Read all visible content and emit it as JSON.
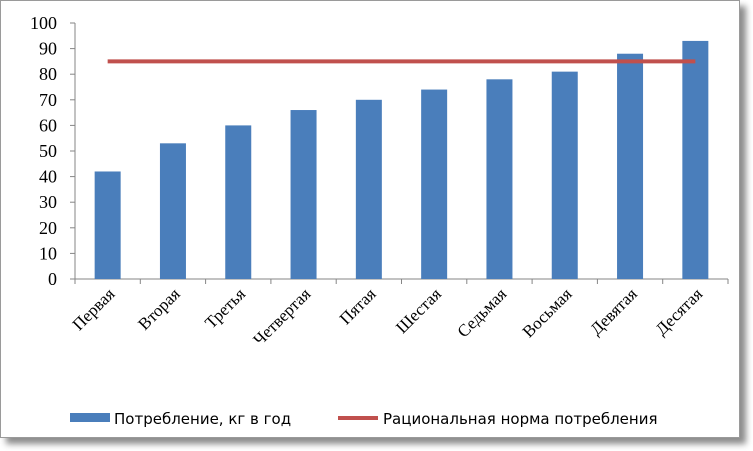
{
  "chart_data": {
    "type": "bar",
    "categories": [
      "Первая",
      "Вторая",
      "Третья",
      "Четвертая",
      "Пятая",
      "Шестая",
      "Седьмая",
      "Восьмая",
      "Девятая",
      "Десятая"
    ],
    "series": [
      {
        "name": "Потребление, кг в год",
        "type": "bar",
        "color": "#4a7ebb",
        "values": [
          42,
          53,
          60,
          66,
          70,
          74,
          78,
          81,
          88,
          93
        ]
      },
      {
        "name": "Рациональная норма потребления",
        "type": "line",
        "color": "#c0504d",
        "values": [
          85,
          85,
          85,
          85,
          85,
          85,
          85,
          85,
          85,
          85
        ]
      }
    ],
    "ylim": [
      0,
      100
    ],
    "yticks": [
      0,
      10,
      20,
      30,
      40,
      50,
      60,
      70,
      80,
      90,
      100
    ],
    "grid": false,
    "legend": "bottom"
  }
}
